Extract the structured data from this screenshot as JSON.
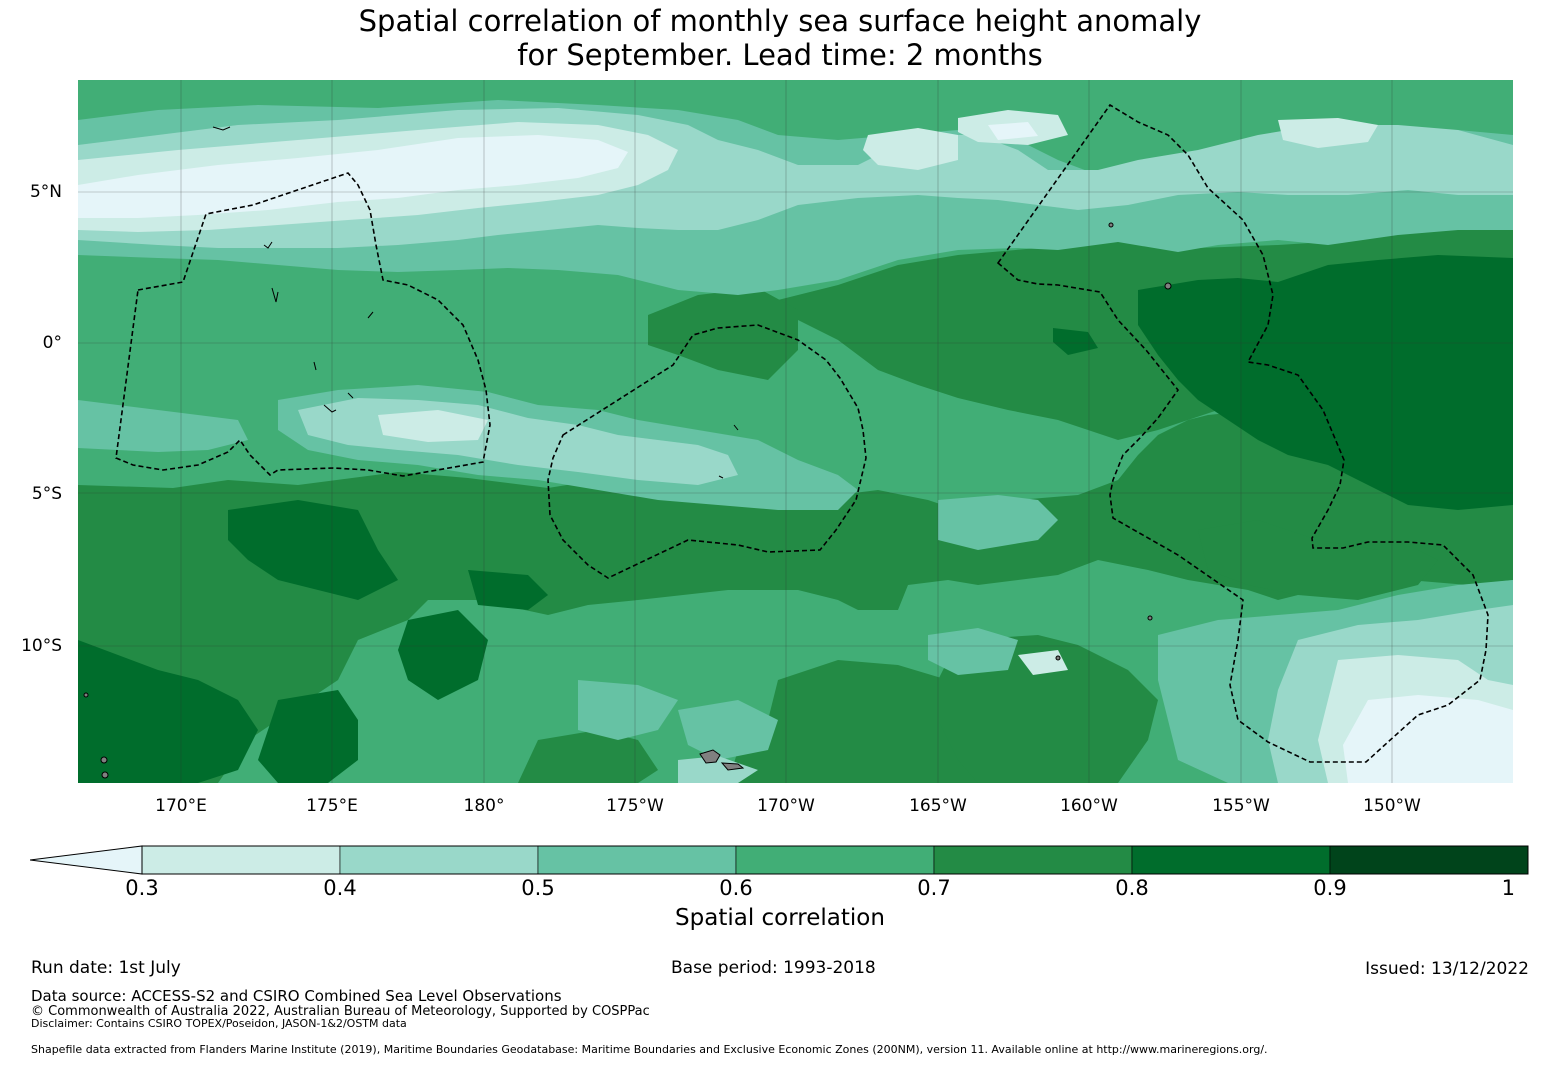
{
  "title": {
    "line1": "Spatial correlation of monthly sea surface height anomaly",
    "line2": "for September. Lead time: 2 months"
  },
  "map": {
    "lat_labels": [
      "5°N",
      "0°",
      "5°S",
      "10°S"
    ],
    "lon_labels": [
      "170°E",
      "175°E",
      "180°",
      "175°W",
      "170°W",
      "165°W",
      "160°W",
      "155°W",
      "150°W"
    ],
    "colors": {
      "ocean_base": "#41ab6f",
      "land": "#808080",
      "eez_boundary": "#000000",
      "grid": "#333333"
    },
    "eez_boundaries": "dashed",
    "gridlines": true
  },
  "colorbar": {
    "label": "Spatial correlation",
    "ticks": [
      "0.3",
      "0.4",
      "0.5",
      "0.6",
      "0.7",
      "0.8",
      "0.9",
      "1"
    ],
    "extend": "min",
    "bins": [
      {
        "range": "<0.3",
        "color": "#e5f5f9"
      },
      {
        "range": "0.3-0.4",
        "color": "#ccece6"
      },
      {
        "range": "0.4-0.5",
        "color": "#99d8c9"
      },
      {
        "range": "0.5-0.6",
        "color": "#66c2a4"
      },
      {
        "range": "0.6-0.7",
        "color": "#41ae76"
      },
      {
        "range": "0.7-0.8",
        "color": "#238b45"
      },
      {
        "range": "0.8-0.9",
        "color": "#006d2c"
      },
      {
        "range": "0.9-1",
        "color": "#00441b"
      }
    ]
  },
  "footer": {
    "run_date": "Run date: 1st July",
    "base_period": "Base period: 1993-2018",
    "issued": "Issued: 13/12/2022",
    "data_source": "Data source: ACCESS-S2 and CSIRO Combined Sea Level Observations",
    "copyright": "© Commonwealth of Australia 2022, Australian Bureau of Meteorology, Supported by COSPPac",
    "disclaimer": "Disclaimer: Contains CSIRO TOPEX/Poseidon, JASON-1&2/OSTM data",
    "shapefile": "Shapefile data extracted from Flanders Marine Institute (2019), Maritime Boundaries Geodatabase: Maritime Boundaries and Exclusive Economic Zones (200NM), version 11. Available online at http://www.marineregions.org/."
  }
}
